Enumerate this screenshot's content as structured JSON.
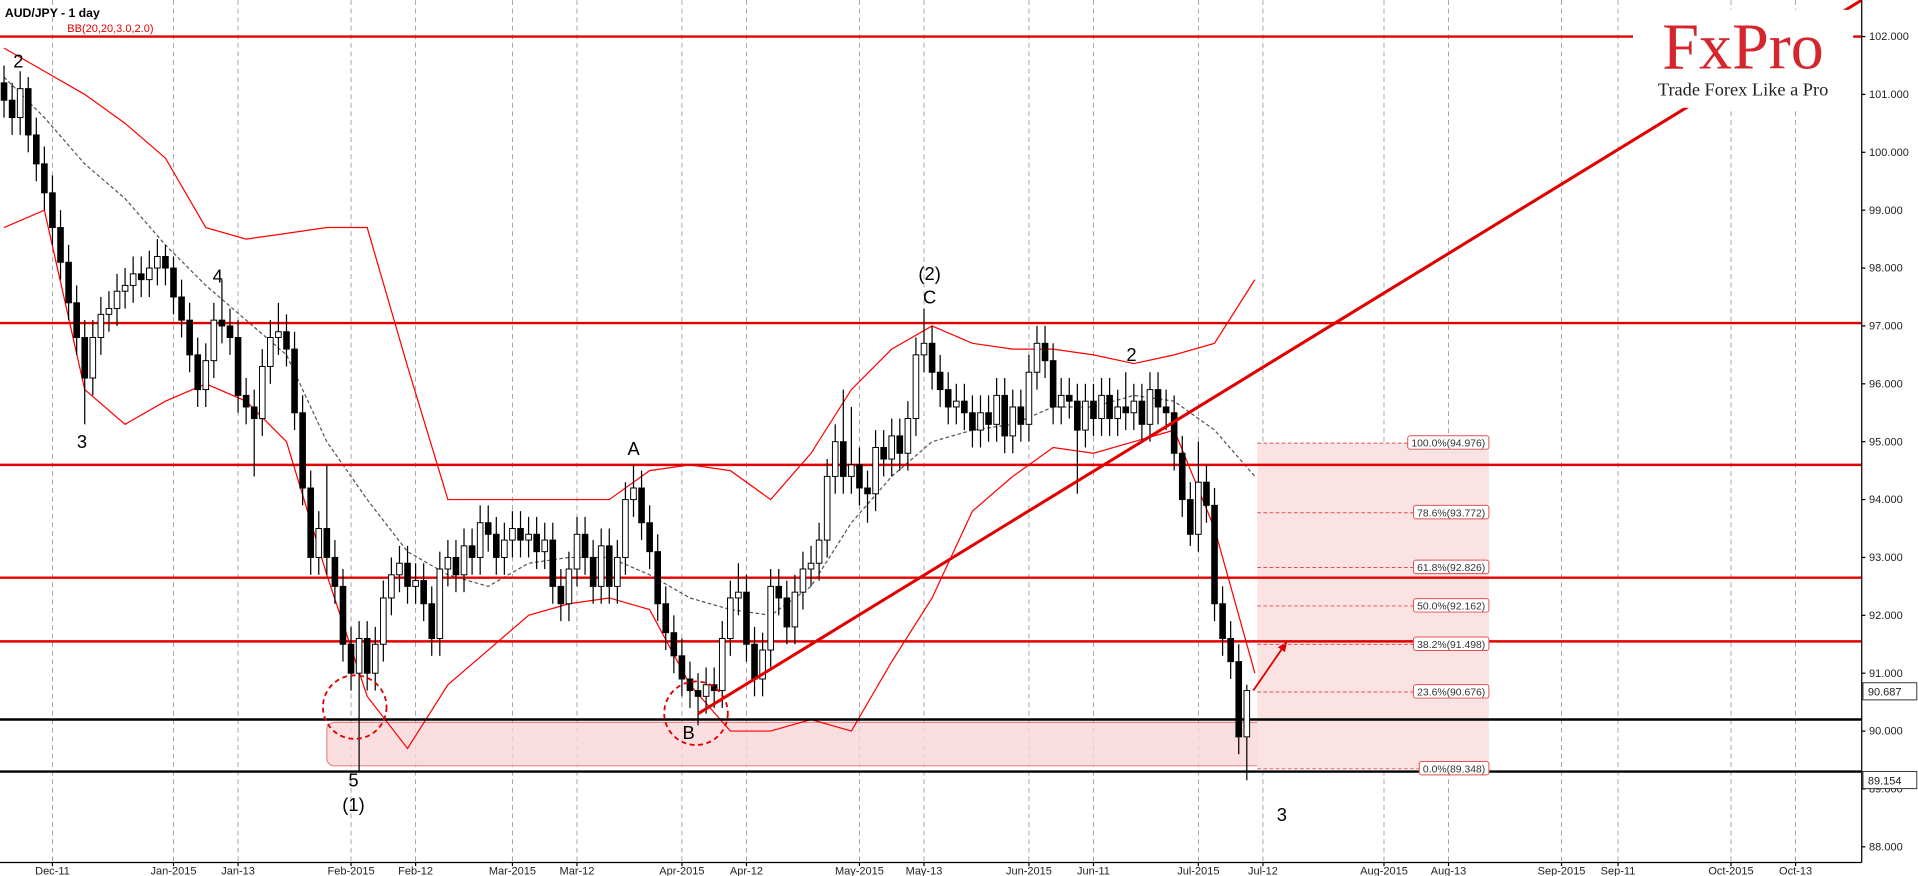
{
  "chart_data": {
    "type": "candlestick",
    "title": "AUD/JPY - 1 day",
    "indicator": "BB(20,20,3.0,2.0)",
    "candle_colors": {
      "up": "#ffffff",
      "down": "#000000",
      "outline": "#000000"
    },
    "candles": [
      [
        101.2,
        101.5,
        100.6,
        100.9
      ],
      [
        100.9,
        101.2,
        100.3,
        100.6
      ],
      [
        100.6,
        101.4,
        100.3,
        101.1
      ],
      [
        101.1,
        101.3,
        100.0,
        100.3
      ],
      [
        100.3,
        100.6,
        99.5,
        99.8
      ],
      [
        99.8,
        100.1,
        99.0,
        99.3
      ],
      [
        99.3,
        99.6,
        98.4,
        98.7
      ],
      [
        98.7,
        99.0,
        97.8,
        98.1
      ],
      [
        98.1,
        98.4,
        97.1,
        97.4
      ],
      [
        97.4,
        97.7,
        96.5,
        96.8
      ],
      [
        96.8,
        97.1,
        95.3,
        96.1
      ],
      [
        96.1,
        97.1,
        95.8,
        96.8
      ],
      [
        96.8,
        97.5,
        96.5,
        97.2
      ],
      [
        97.2,
        97.6,
        96.9,
        97.3
      ],
      [
        97.3,
        97.9,
        97.0,
        97.6
      ],
      [
        97.6,
        98.0,
        97.3,
        97.7
      ],
      [
        97.7,
        98.2,
        97.4,
        97.9
      ],
      [
        97.9,
        98.2,
        97.5,
        97.8
      ],
      [
        97.8,
        98.3,
        97.5,
        98.0
      ],
      [
        98.0,
        98.5,
        97.7,
        98.2
      ],
      [
        98.2,
        98.4,
        97.7,
        98.0
      ],
      [
        98.0,
        98.2,
        97.2,
        97.5
      ],
      [
        97.5,
        97.8,
        96.8,
        97.1
      ],
      [
        97.1,
        97.4,
        96.2,
        96.5
      ],
      [
        96.5,
        96.8,
        95.6,
        95.9
      ],
      [
        95.9,
        96.7,
        95.6,
        96.4
      ],
      [
        96.4,
        97.4,
        96.1,
        97.1
      ],
      [
        97.1,
        97.8,
        96.7,
        97.0
      ],
      [
        97.0,
        97.3,
        96.5,
        96.8
      ],
      [
        96.8,
        97.1,
        95.5,
        95.8
      ],
      [
        95.8,
        96.1,
        95.3,
        95.6
      ],
      [
        95.6,
        95.9,
        94.4,
        95.4
      ],
      [
        95.4,
        96.6,
        95.1,
        96.3
      ],
      [
        96.3,
        97.1,
        96.0,
        96.8
      ],
      [
        96.8,
        97.4,
        96.5,
        96.9
      ],
      [
        96.9,
        97.2,
        96.3,
        96.6
      ],
      [
        96.6,
        96.9,
        95.2,
        95.5
      ],
      [
        95.5,
        95.8,
        93.9,
        94.2
      ],
      [
        94.2,
        94.5,
        92.7,
        93.0
      ],
      [
        93.0,
        93.8,
        92.7,
        93.5
      ],
      [
        93.5,
        94.6,
        92.7,
        93.0
      ],
      [
        93.0,
        93.3,
        92.2,
        92.5
      ],
      [
        92.5,
        92.8,
        91.2,
        91.5
      ],
      [
        91.5,
        91.8,
        90.7,
        91.0
      ],
      [
        91.0,
        91.9,
        89.3,
        91.6
      ],
      [
        91.6,
        91.9,
        90.7,
        91.0
      ],
      [
        91.0,
        91.8,
        90.7,
        91.5
      ],
      [
        91.5,
        92.6,
        91.2,
        92.3
      ],
      [
        92.3,
        93.0,
        92.0,
        92.7
      ],
      [
        92.7,
        93.2,
        92.4,
        92.9
      ],
      [
        92.9,
        93.2,
        92.2,
        92.5
      ],
      [
        92.5,
        92.9,
        92.2,
        92.6
      ],
      [
        92.6,
        92.9,
        91.9,
        92.2
      ],
      [
        92.2,
        92.5,
        91.3,
        91.6
      ],
      [
        91.6,
        93.1,
        91.3,
        92.8
      ],
      [
        92.8,
        93.3,
        92.5,
        93.0
      ],
      [
        93.0,
        93.3,
        92.4,
        92.7
      ],
      [
        92.7,
        93.5,
        92.4,
        93.2
      ],
      [
        93.2,
        93.5,
        92.7,
        93.0
      ],
      [
        93.0,
        93.9,
        92.7,
        93.6
      ],
      [
        93.6,
        93.9,
        93.1,
        93.4
      ],
      [
        93.4,
        93.7,
        92.7,
        93.0
      ],
      [
        93.0,
        93.6,
        92.7,
        93.3
      ],
      [
        93.3,
        93.8,
        93.0,
        93.5
      ],
      [
        93.5,
        93.8,
        93.0,
        93.3
      ],
      [
        93.3,
        93.7,
        93.0,
        93.4
      ],
      [
        93.4,
        93.7,
        92.8,
        93.1
      ],
      [
        93.1,
        93.6,
        92.8,
        93.3
      ],
      [
        93.3,
        93.6,
        92.2,
        92.5
      ],
      [
        92.5,
        92.8,
        91.9,
        92.2
      ],
      [
        92.2,
        93.1,
        91.9,
        92.8
      ],
      [
        92.8,
        93.7,
        92.5,
        93.4
      ],
      [
        93.4,
        93.7,
        92.7,
        93.0
      ],
      [
        93.0,
        93.3,
        92.2,
        92.5
      ],
      [
        92.5,
        93.5,
        92.2,
        93.2
      ],
      [
        93.2,
        93.5,
        92.2,
        92.5
      ],
      [
        92.5,
        93.3,
        92.2,
        93.0
      ],
      [
        93.0,
        94.3,
        92.7,
        94.0
      ],
      [
        94.0,
        94.6,
        93.7,
        94.2
      ],
      [
        94.2,
        94.5,
        93.3,
        93.6
      ],
      [
        93.6,
        93.9,
        92.8,
        93.1
      ],
      [
        93.1,
        93.4,
        91.9,
        92.2
      ],
      [
        92.2,
        92.5,
        91.4,
        91.7
      ],
      [
        91.7,
        92.0,
        91.0,
        91.3
      ],
      [
        91.3,
        91.6,
        90.6,
        90.9
      ],
      [
        90.9,
        91.2,
        90.4,
        90.7
      ],
      [
        90.7,
        91.0,
        90.1,
        90.6
      ],
      [
        90.6,
        91.1,
        90.3,
        90.8
      ],
      [
        90.8,
        91.1,
        90.4,
        90.7
      ],
      [
        90.7,
        91.9,
        90.4,
        91.6
      ],
      [
        91.6,
        92.6,
        91.3,
        92.3
      ],
      [
        92.3,
        92.9,
        92.0,
        92.4
      ],
      [
        92.4,
        92.7,
        91.2,
        91.5
      ],
      [
        91.5,
        91.8,
        90.6,
        90.9
      ],
      [
        90.9,
        91.7,
        90.6,
        91.4
      ],
      [
        91.4,
        92.8,
        91.1,
        92.5
      ],
      [
        92.5,
        92.8,
        92.0,
        92.3
      ],
      [
        92.3,
        92.6,
        91.5,
        91.8
      ],
      [
        91.8,
        92.7,
        91.5,
        92.4
      ],
      [
        92.4,
        93.1,
        92.1,
        92.8
      ],
      [
        92.8,
        93.2,
        92.5,
        92.9
      ],
      [
        92.9,
        93.6,
        92.6,
        93.3
      ],
      [
        93.3,
        94.7,
        93.0,
        94.4
      ],
      [
        94.4,
        95.3,
        94.1,
        95.0
      ],
      [
        95.0,
        95.9,
        94.1,
        94.4
      ],
      [
        94.4,
        95.6,
        94.1,
        94.6
      ],
      [
        94.6,
        94.9,
        93.9,
        94.2
      ],
      [
        94.2,
        94.5,
        93.6,
        94.1
      ],
      [
        94.1,
        95.2,
        93.8,
        94.9
      ],
      [
        94.9,
        95.2,
        94.4,
        94.7
      ],
      [
        94.7,
        95.4,
        94.4,
        95.1
      ],
      [
        95.1,
        95.4,
        94.5,
        94.8
      ],
      [
        94.8,
        95.7,
        94.5,
        95.4
      ],
      [
        95.4,
        96.8,
        95.1,
        96.5
      ],
      [
        96.5,
        97.3,
        96.2,
        96.7
      ],
      [
        96.7,
        97.0,
        95.9,
        96.2
      ],
      [
        96.2,
        96.5,
        95.6,
        95.9
      ],
      [
        95.9,
        96.2,
        95.3,
        95.6
      ],
      [
        95.6,
        96.0,
        95.3,
        95.7
      ],
      [
        95.7,
        96.0,
        95.2,
        95.5
      ],
      [
        95.5,
        95.8,
        94.9,
        95.2
      ],
      [
        95.2,
        95.8,
        94.9,
        95.5
      ],
      [
        95.5,
        95.8,
        95.0,
        95.3
      ],
      [
        95.3,
        96.1,
        95.0,
        95.8
      ],
      [
        95.8,
        96.1,
        94.8,
        95.1
      ],
      [
        95.1,
        95.9,
        94.8,
        95.6
      ],
      [
        95.6,
        95.9,
        95.0,
        95.3
      ],
      [
        95.3,
        96.5,
        95.0,
        96.2
      ],
      [
        96.2,
        97.0,
        95.9,
        96.7
      ],
      [
        96.7,
        97.0,
        96.1,
        96.4
      ],
      [
        96.4,
        96.7,
        95.3,
        95.6
      ],
      [
        95.6,
        96.1,
        95.3,
        95.8
      ],
      [
        95.8,
        96.1,
        95.4,
        95.7
      ],
      [
        95.7,
        96.0,
        94.1,
        95.2
      ],
      [
        95.2,
        96.0,
        94.9,
        95.7
      ],
      [
        95.7,
        96.0,
        95.1,
        95.4
      ],
      [
        95.4,
        96.1,
        95.1,
        95.8
      ],
      [
        95.8,
        96.1,
        95.1,
        95.4
      ],
      [
        95.4,
        95.9,
        95.1,
        95.6
      ],
      [
        95.6,
        96.2,
        95.2,
        95.5
      ],
      [
        95.5,
        96.0,
        95.2,
        95.7
      ],
      [
        95.7,
        96.0,
        95.0,
        95.3
      ],
      [
        95.3,
        96.2,
        95.0,
        95.9
      ],
      [
        95.9,
        96.2,
        95.3,
        95.6
      ],
      [
        95.6,
        95.9,
        95.2,
        95.5
      ],
      [
        95.5,
        95.8,
        94.5,
        94.8
      ],
      [
        94.8,
        95.1,
        93.7,
        94.0
      ],
      [
        94.0,
        94.3,
        93.2,
        93.4
      ],
      [
        93.4,
        95.0,
        93.1,
        94.3
      ],
      [
        94.3,
        94.6,
        93.6,
        93.9
      ],
      [
        93.9,
        94.2,
        91.9,
        92.2
      ],
      [
        92.2,
        92.5,
        91.3,
        91.6
      ],
      [
        91.6,
        91.9,
        90.9,
        91.2
      ],
      [
        91.2,
        91.5,
        89.6,
        89.9
      ],
      [
        89.9,
        90.8,
        89.15,
        90.7
      ]
    ],
    "xlim": [
      -0.5,
      230.2
    ],
    "ylim": [
      87.73,
      102.63
    ],
    "grid": true,
    "xticks": [
      {
        "value": 6,
        "label": "Dec-11"
      },
      {
        "value": 21,
        "label": "Jan-2015"
      },
      {
        "value": 29,
        "label": "Jan-13"
      },
      {
        "value": 43,
        "label": "Feb-2015"
      },
      {
        "value": 51,
        "label": "Feb-12"
      },
      {
        "value": 63,
        "label": "Mar-2015"
      },
      {
        "value": 71,
        "label": "Mar-12"
      },
      {
        "value": 84,
        "label": "Apr-2015"
      },
      {
        "value": 92,
        "label": "Apr-12"
      },
      {
        "value": 106,
        "label": "May-2015"
      },
      {
        "value": 114,
        "label": "May-13"
      },
      {
        "value": 127,
        "label": "Jun-2015"
      },
      {
        "value": 135,
        "label": "Jun-11"
      },
      {
        "value": 148,
        "label": "Jul-2015"
      },
      {
        "value": 156,
        "label": "Jul-12"
      },
      {
        "value": 171,
        "label": "Aug-2015"
      },
      {
        "value": 179,
        "label": "Aug-13"
      },
      {
        "value": 193,
        "label": "Sep-2015"
      },
      {
        "value": 200,
        "label": "Sep-11"
      },
      {
        "value": 214,
        "label": "Oct-2015"
      },
      {
        "value": 222,
        "label": "Oct-13"
      }
    ],
    "yticks": [
      {
        "value": 88,
        "label": "88.000"
      },
      {
        "value": 89,
        "label": "89.000"
      },
      {
        "value": 90,
        "label": "90.000"
      },
      {
        "value": 91,
        "label": "91.000"
      },
      {
        "value": 92,
        "label": "92.000"
      },
      {
        "value": 93,
        "label": "93.000"
      },
      {
        "value": 94,
        "label": "94.000"
      },
      {
        "value": 95,
        "label": "95.000"
      },
      {
        "value": 96,
        "label": "96.000"
      },
      {
        "value": 97,
        "label": "97.000"
      },
      {
        "value": 98,
        "label": "98.000"
      },
      {
        "value": 99,
        "label": "99.000"
      },
      {
        "value": 100,
        "label": "100.000"
      },
      {
        "value": 101,
        "label": "101.000"
      },
      {
        "value": 102,
        "label": "102.000"
      }
    ],
    "bollinger": {
      "color": "#ff0000",
      "x": [
        0,
        5,
        10,
        15,
        20,
        25,
        30,
        35,
        40,
        45,
        50,
        55,
        60,
        65,
        70,
        75,
        80,
        85,
        90,
        95,
        100,
        105,
        110,
        115,
        120,
        125,
        130,
        135,
        140,
        145,
        150,
        155
      ],
      "upper": [
        101.8,
        101.4,
        101.0,
        100.5,
        99.9,
        98.7,
        98.5,
        98.6,
        98.7,
        98.7,
        96.3,
        94.0,
        94.0,
        94.0,
        94.0,
        94.0,
        94.5,
        94.6,
        94.5,
        94.0,
        94.8,
        95.9,
        96.6,
        97.0,
        96.7,
        96.6,
        96.6,
        96.5,
        96.35,
        96.5,
        96.7,
        97.8
      ],
      "middle": [
        101.3,
        100.6,
        99.8,
        99.2,
        98.4,
        97.7,
        97.1,
        96.5,
        95.0,
        94.0,
        93.1,
        92.7,
        92.5,
        92.9,
        93.0,
        93.0,
        92.7,
        92.3,
        92.1,
        92.0,
        92.5,
        93.6,
        94.4,
        95.0,
        95.2,
        95.3,
        95.6,
        95.6,
        95.8,
        95.7,
        95.2,
        94.4
      ],
      "lower": [
        98.7,
        99.0,
        95.9,
        95.3,
        95.7,
        96.0,
        95.7,
        95.0,
        92.7,
        90.6,
        89.7,
        90.8,
        91.4,
        92.0,
        92.2,
        92.3,
        92.1,
        90.8,
        90.0,
        90.0,
        90.2,
        90.0,
        91.2,
        92.3,
        93.8,
        94.4,
        94.9,
        94.8,
        95.0,
        95.2,
        93.5,
        91.0
      ]
    },
    "levels": [
      {
        "value": 102.0,
        "color": "#e00000"
      },
      {
        "value": 97.05,
        "color": "#e00000"
      },
      {
        "value": 94.6,
        "color": "#e00000"
      },
      {
        "value": 92.65,
        "color": "#e00000"
      },
      {
        "value": 91.55,
        "color": "#e00000"
      },
      {
        "value": 90.2,
        "color": "#000000"
      },
      {
        "value": 89.3,
        "color": "#000000"
      }
    ],
    "trendline": {
      "x": [
        86,
        230.2
      ],
      "y": [
        90.3,
        102.63
      ],
      "color": "#e00000"
    },
    "target_arrow": {
      "x": [
        154.8,
        159
      ],
      "y": [
        90.7,
        91.55
      ],
      "color": "#e00000"
    },
    "zone": {
      "x": [
        40,
        163
      ],
      "y": [
        89.4,
        90.15
      ]
    },
    "fib": {
      "x": [
        155.3,
        184
      ],
      "levels": [
        {
          "value": 94.976,
          "label": "100.0%(94.976)"
        },
        {
          "value": 93.772,
          "label": "78.6%(93.772)"
        },
        {
          "value": 92.826,
          "label": "61.8%(92.826)"
        },
        {
          "value": 92.162,
          "label": "50.0%(92.162)"
        },
        {
          "value": 91.498,
          "label": "38.2%(91.498)"
        },
        {
          "value": 90.676,
          "label": "23.6%(90.676)"
        },
        {
          "value": 89.348,
          "label": "0.0%(89.348)"
        }
      ]
    },
    "price_markers": [
      {
        "value": 90.687,
        "label": "90.687"
      },
      {
        "value": 89.154,
        "label": "89.154"
      }
    ],
    "wave_labels": [
      "2",
      "3",
      "4",
      "5",
      "(1)",
      "A",
      "B",
      "(2)",
      "C",
      "2",
      "3"
    ],
    "logo": {
      "brand": "FxPro",
      "tagline": "Trade Forex Like a Pro"
    }
  }
}
